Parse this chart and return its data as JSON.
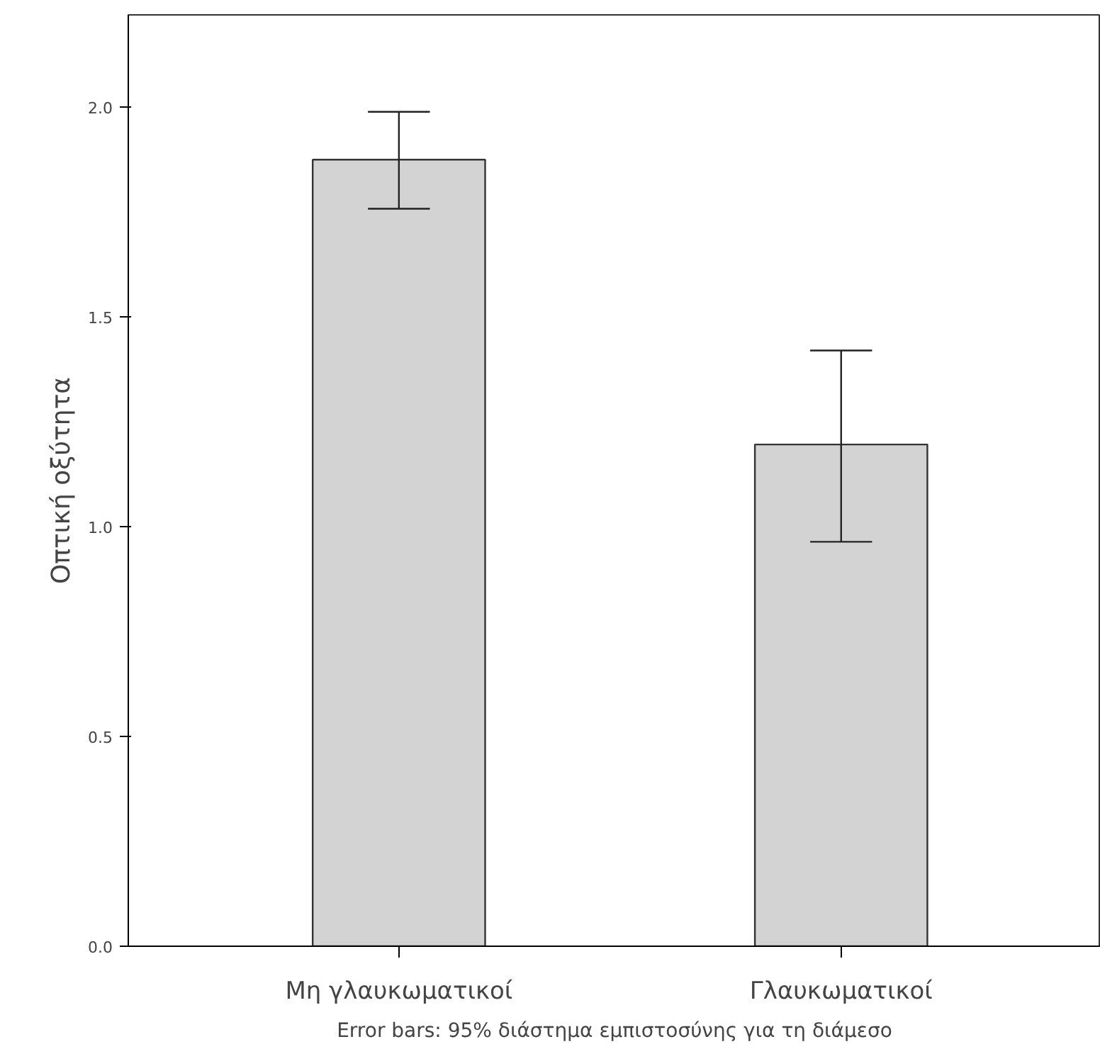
{
  "chart_data": {
    "type": "bar",
    "ylabel": "Οπτική οξύτητα",
    "categories": [
      "Μη γλαυκωματικοί",
      "Γλαυκωματικοί"
    ],
    "values": [
      1.875,
      1.196
    ],
    "color": "#d3d3d3",
    "errors": [
      [
        1.758,
        1.989
      ],
      [
        0.964,
        1.42
      ]
    ],
    "ylim": [
      0,
      2.22
    ],
    "yticks": [
      {
        "value": 0,
        "label": "0.0"
      },
      {
        "value": 0.5,
        "label": "0.5"
      },
      {
        "value": 1,
        "label": "1.0"
      },
      {
        "value": 1.5,
        "label": "1.5"
      },
      {
        "value": 2,
        "label": "2.0"
      }
    ],
    "grid": false,
    "annotations": [
      "Error bars: 95% διάστημα εμπιστοσύνης για τη διάμεσο"
    ]
  }
}
